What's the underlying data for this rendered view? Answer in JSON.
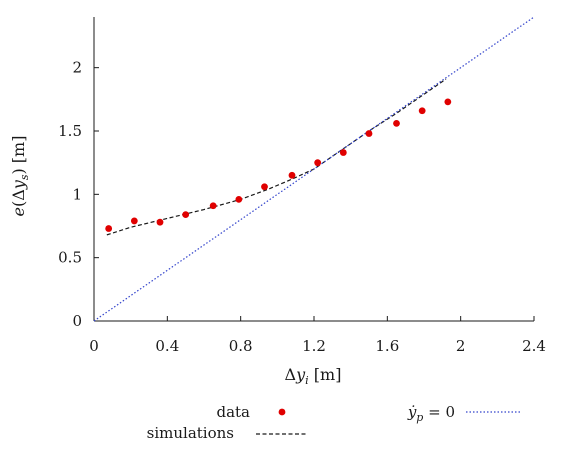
{
  "chart_data": {
    "type": "scatter",
    "xlabel": "Δy_i [m]",
    "ylabel": "e(Δy_s) [m]",
    "xlim": [
      0,
      2.4
    ],
    "ylim": [
      0,
      2.4
    ],
    "x_ticks": [
      0,
      0.4,
      0.8,
      1.2,
      1.6,
      2,
      2.4
    ],
    "x_tick_labels": [
      "0",
      "0.4",
      "0.8",
      "1.2",
      "1.6",
      "2",
      "2.4"
    ],
    "y_ticks": [
      0,
      0.5,
      1,
      1.5,
      2
    ],
    "y_tick_labels": [
      "0",
      "0.5",
      "1",
      "1.5",
      "2"
    ],
    "grid": false,
    "legend_position": "bottom",
    "series": [
      {
        "name": "data",
        "kind": "scatter",
        "color": "#e00000",
        "x": [
          0.08,
          0.22,
          0.36,
          0.5,
          0.65,
          0.79,
          0.93,
          1.08,
          1.22,
          1.36,
          1.5,
          1.65,
          1.79,
          1.93
        ],
        "y": [
          0.73,
          0.79,
          0.78,
          0.84,
          0.91,
          0.96,
          1.06,
          1.15,
          1.25,
          1.33,
          1.48,
          1.56,
          1.66,
          1.73
        ]
      },
      {
        "name": "simulations",
        "kind": "line",
        "style": "dashed",
        "color": "#1a1a1a",
        "x": [
          0.07,
          0.2,
          0.4,
          0.6,
          0.8,
          0.95,
          1.08,
          1.2,
          1.35,
          1.5,
          1.65,
          1.8,
          1.92
        ],
        "y": [
          0.68,
          0.74,
          0.81,
          0.88,
          0.96,
          1.04,
          1.12,
          1.2,
          1.35,
          1.5,
          1.64,
          1.79,
          1.91
        ]
      },
      {
        "name": "ẏ_p = 0",
        "kind": "line",
        "style": "dotted",
        "color": "#3344cc",
        "x": [
          0,
          2.4
        ],
        "y": [
          0,
          2.4
        ]
      }
    ]
  }
}
